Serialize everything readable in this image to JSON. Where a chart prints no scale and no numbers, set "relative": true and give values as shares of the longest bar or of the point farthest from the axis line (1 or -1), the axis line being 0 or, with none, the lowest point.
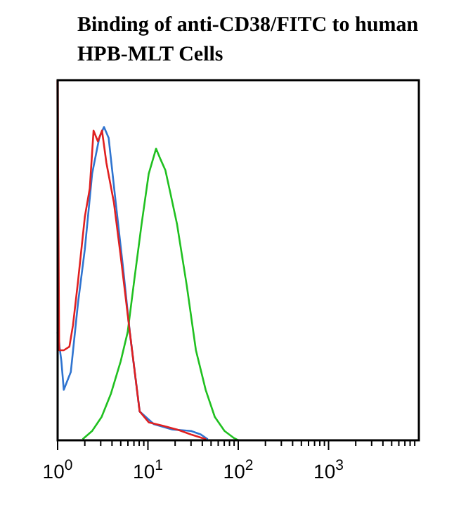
{
  "chart_data": {
    "type": "line",
    "title": "Binding of anti-CD38/FITC to human HPB-MLT Cells",
    "relative": true,
    "log": "x",
    "xlim": [
      1,
      10000
    ],
    "xticks": [
      {
        "value": 1,
        "label": "10$^{0}$"
      },
      {
        "value": 2,
        "label": null
      },
      {
        "value": 3,
        "label": null
      },
      {
        "value": 4,
        "label": null
      },
      {
        "value": 5,
        "label": null
      },
      {
        "value": 6,
        "label": null
      },
      {
        "value": 7,
        "label": null
      },
      {
        "value": 8,
        "label": null
      },
      {
        "value": 9,
        "label": null
      },
      {
        "value": 10,
        "label": "10$^{1}$"
      },
      {
        "value": 20,
        "label": null
      },
      {
        "value": 30,
        "label": null
      },
      {
        "value": 40,
        "label": null
      },
      {
        "value": 50,
        "label": null
      },
      {
        "value": 60,
        "label": null
      },
      {
        "value": 70,
        "label": null
      },
      {
        "value": 80,
        "label": null
      },
      {
        "value": 90,
        "label": null
      },
      {
        "value": 100,
        "label": "10$^{2}$"
      },
      {
        "value": 200,
        "label": null
      },
      {
        "value": 300,
        "label": null
      },
      {
        "value": 400,
        "label": null
      },
      {
        "value": 500,
        "label": null
      },
      {
        "value": 600,
        "label": null
      },
      {
        "value": 700,
        "label": null
      },
      {
        "value": 800,
        "label": null
      },
      {
        "value": 900,
        "label": null
      },
      {
        "value": 1000,
        "label": "10$^{3}$"
      },
      {
        "value": 2000,
        "label": null
      },
      {
        "value": 3000,
        "label": null
      },
      {
        "value": 4000,
        "label": null
      },
      {
        "value": 5000,
        "label": null
      },
      {
        "value": 6000,
        "label": null
      },
      {
        "value": 7000,
        "label": null
      },
      {
        "value": 8000,
        "label": null
      },
      {
        "value": 9000,
        "label": null
      }
    ],
    "grid": false,
    "line_style": "solid",
    "series": [
      {
        "color": "#2f74d0",
        "x": [
          1,
          1.1,
          1.17,
          1.4,
          1.68,
          2.0,
          2.41,
          2.89,
          3.26,
          3.67,
          4.4,
          5.3,
          6.3,
          8.1,
          11.6,
          18.7,
          30,
          38.6,
          46
        ],
        "values": [
          0.3,
          0.22,
          0.14,
          0.19,
          0.38,
          0.53,
          0.74,
          0.84,
          0.87,
          0.84,
          0.66,
          0.48,
          0.3,
          0.08,
          0.045,
          0.03,
          0.026,
          0.016,
          0.003
        ]
      },
      {
        "color": "#20c020",
        "x": [
          1.89,
          2.41,
          3.07,
          3.9,
          5.0,
          5.96,
          7.1,
          8.5,
          10.2,
          12.3,
          13.8,
          15.6,
          17.6,
          21,
          26.9,
          34,
          43.6,
          55,
          70.5,
          90,
          100
        ],
        "values": [
          0.003,
          0.026,
          0.065,
          0.13,
          0.22,
          0.3,
          0.45,
          0.6,
          0.74,
          0.81,
          0.78,
          0.75,
          0.69,
          0.6,
          0.43,
          0.25,
          0.14,
          0.065,
          0.026,
          0.006,
          0
        ]
      },
      {
        "color": "#e02020",
        "x": [
          1,
          1.04,
          1.17,
          1.35,
          1.48,
          1.68,
          2.0,
          2.27,
          2.5,
          2.79,
          3.1,
          3.47,
          4.2,
          5.0,
          6.3,
          8.1,
          10.2,
          14.8,
          21,
          30,
          44
        ],
        "values": [
          1,
          0.25,
          0.25,
          0.26,
          0.32,
          0.44,
          0.62,
          0.7,
          0.86,
          0.83,
          0.86,
          0.77,
          0.66,
          0.51,
          0.3,
          0.08,
          0.05,
          0.04,
          0.03,
          0.016,
          0.003
        ]
      }
    ]
  }
}
